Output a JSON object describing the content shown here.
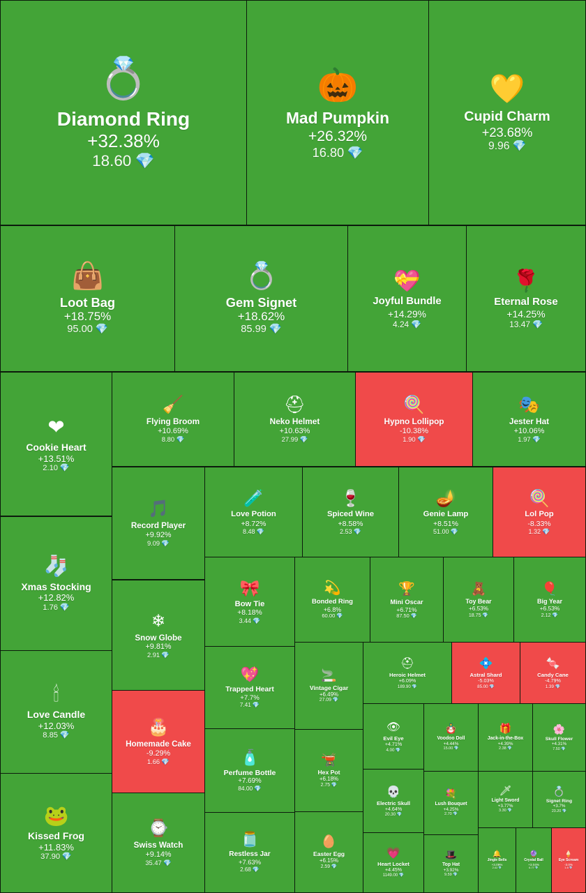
{
  "colors": {
    "gain": "#43a437",
    "loss": "#f04a4a",
    "gem": "#7fe4ff"
  },
  "currency_symbol": "💎",
  "chart_data": {
    "type": "treemap",
    "items": [
      {
        "name": "Diamond Ring",
        "change": "+32.38%",
        "change_value": 32.38,
        "price": "18.60",
        "icon": "ring-box-icon"
      },
      {
        "name": "Mad Pumpkin",
        "change": "+26.32%",
        "change_value": 26.32,
        "price": "16.80",
        "icon": "pumpkin-icon"
      },
      {
        "name": "Cupid Charm",
        "change": "+23.68%",
        "change_value": 23.68,
        "price": "9.96",
        "icon": "heart-lock-icon"
      },
      {
        "name": "Loot Bag",
        "change": "+18.75%",
        "change_value": 18.75,
        "price": "95.00",
        "icon": "handbag-icon"
      },
      {
        "name": "Gem Signet",
        "change": "+18.62%",
        "change_value": 18.62,
        "price": "85.99",
        "icon": "gem-ring-icon"
      },
      {
        "name": "Joyful Bundle",
        "change": "+14.29%",
        "change_value": 14.29,
        "price": "4.24",
        "icon": "gift-bundle-icon"
      },
      {
        "name": "Eternal Rose",
        "change": "+14.25%",
        "change_value": 14.25,
        "price": "13.47",
        "icon": "rose-icon"
      },
      {
        "name": "Cookie Heart",
        "change": "+13.51%",
        "change_value": 13.51,
        "price": "2.10",
        "icon": "cookie-heart-icon"
      },
      {
        "name": "Flying Broom",
        "change": "+10.69%",
        "change_value": 10.69,
        "price": "8.80",
        "icon": "broom-icon"
      },
      {
        "name": "Neko Helmet",
        "change": "+10.63%",
        "change_value": 10.63,
        "price": "27.99",
        "icon": "helmet-icon"
      },
      {
        "name": "Hypno Lollipop",
        "change": "-10.38%",
        "change_value": -10.38,
        "price": "1.90",
        "icon": "lollipop-icon"
      },
      {
        "name": "Jester Hat",
        "change": "+10.06%",
        "change_value": 10.06,
        "price": "1.97",
        "icon": "jester-hat-icon"
      },
      {
        "name": "Record Player",
        "change": "+9.92%",
        "change_value": 9.92,
        "price": "9.09",
        "icon": "record-player-icon"
      },
      {
        "name": "Love Potion",
        "change": "+8.72%",
        "change_value": 8.72,
        "price": "8.48",
        "icon": "potion-icon"
      },
      {
        "name": "Spiced Wine",
        "change": "+8.58%",
        "change_value": 8.58,
        "price": "2.53",
        "icon": "wine-glass-icon"
      },
      {
        "name": "Genie Lamp",
        "change": "+8.51%",
        "change_value": 8.51,
        "price": "51.00",
        "icon": "lamp-icon"
      },
      {
        "name": "Lol Pop",
        "change": "-8.33%",
        "change_value": -8.33,
        "price": "1.32",
        "icon": "swirl-lollipop-icon"
      },
      {
        "name": "Xmas Stocking",
        "change": "+12.82%",
        "change_value": 12.82,
        "price": "1.76",
        "icon": "stocking-icon"
      },
      {
        "name": "Snow Globe",
        "change": "+9.81%",
        "change_value": 9.81,
        "price": "2.91",
        "icon": "snow-globe-icon"
      },
      {
        "name": "Bow Tie",
        "change": "+8.18%",
        "change_value": 8.18,
        "price": "3.44",
        "icon": "bow-tie-icon"
      },
      {
        "name": "Bonded Ring",
        "change": "+6.8%",
        "change_value": 6.8,
        "price": "60.00",
        "icon": "bonded-ring-icon"
      },
      {
        "name": "Mini Oscar",
        "change": "+6.71%",
        "change_value": 6.71,
        "price": "87.50",
        "icon": "trophy-icon"
      },
      {
        "name": "Toy Bear",
        "change": "+6.53%",
        "change_value": 6.53,
        "price": "18.75",
        "icon": "teddy-bear-icon"
      },
      {
        "name": "Big Year",
        "change": "+6.53%",
        "change_value": 6.53,
        "price": "2.12",
        "icon": "balloons-icon"
      },
      {
        "name": "Trapped Heart",
        "change": "+7.7%",
        "change_value": 7.7,
        "price": "7.41",
        "icon": "trapped-heart-icon"
      },
      {
        "name": "Vintage Cigar",
        "change": "+6.49%",
        "change_value": 6.49,
        "price": "27.09",
        "icon": "cigar-icon"
      },
      {
        "name": "Heroic Helmet",
        "change": "+6.09%",
        "change_value": 6.09,
        "price": "189.90",
        "icon": "spartan-helmet-icon"
      },
      {
        "name": "Astral Shard",
        "change": "-5.03%",
        "change_value": -5.03,
        "price": "85.00",
        "icon": "crystal-icon"
      },
      {
        "name": "Candy Cane",
        "change": "-4.79%",
        "change_value": -4.79,
        "price": "1.39",
        "icon": "candy-cane-icon"
      },
      {
        "name": "Love Candle",
        "change": "+12.03%",
        "change_value": 12.03,
        "price": "8.85",
        "icon": "candle-icon"
      },
      {
        "name": "Homemade Cake",
        "change": "-9.29%",
        "change_value": -9.29,
        "price": "1.66",
        "icon": "cake-icon"
      },
      {
        "name": "Perfume Bottle",
        "change": "+7.69%",
        "change_value": 7.69,
        "price": "84.00",
        "icon": "perfume-icon"
      },
      {
        "name": "Hex Pot",
        "change": "+6.18%",
        "change_value": 6.18,
        "price": "2.75",
        "icon": "cauldron-icon"
      },
      {
        "name": "Evil Eye",
        "change": "+4.71%",
        "change_value": 4.71,
        "price": "4.00",
        "icon": "eye-icon"
      },
      {
        "name": "Voodoo Doll",
        "change": "+4.44%",
        "change_value": 4.44,
        "price": "15.00",
        "icon": "voodoo-doll-icon"
      },
      {
        "name": "Jack-in-the-Box",
        "change": "+4.39%",
        "change_value": 4.39,
        "price": "2.38",
        "icon": "jack-in-box-icon"
      },
      {
        "name": "Skull Flower",
        "change": "+4.31%",
        "change_value": 4.31,
        "price": "7.50",
        "icon": "skull-flower-icon"
      },
      {
        "name": "Electric Skull",
        "change": "+4.64%",
        "change_value": 4.64,
        "price": "20.30",
        "icon": "skull-icon"
      },
      {
        "name": "Lush Bouquet",
        "change": "+4.25%",
        "change_value": 4.25,
        "price": "2.70",
        "icon": "bouquet-icon"
      },
      {
        "name": "Light Sword",
        "change": "+3.77%",
        "change_value": 3.77,
        "price": "3.30",
        "icon": "sword-icon"
      },
      {
        "name": "Signet Ring",
        "change": "+3.7%",
        "change_value": 3.7,
        "price": "23.20",
        "icon": "signet-ring-icon"
      },
      {
        "name": "Kissed Frog",
        "change": "+11.83%",
        "change_value": 11.83,
        "price": "37.90",
        "icon": "frog-icon"
      },
      {
        "name": "Swiss Watch",
        "change": "+9.14%",
        "change_value": 9.14,
        "price": "35.47",
        "icon": "watch-icon"
      },
      {
        "name": "Restless Jar",
        "change": "+7.63%",
        "change_value": 7.63,
        "price": "2.68",
        "icon": "jar-icon"
      },
      {
        "name": "Easter Egg",
        "change": "+6.15%",
        "change_value": 6.15,
        "price": "2.59",
        "icon": "egg-icon"
      },
      {
        "name": "Heart Locket",
        "change": "+4.45%",
        "change_value": 4.45,
        "price": "1149.00",
        "icon": "locket-icon"
      },
      {
        "name": "Top Hat",
        "change": "+3.92%",
        "change_value": 3.92,
        "price": "9.59",
        "icon": "top-hat-icon"
      },
      {
        "name": "Jingle Bells",
        "change": "+3.09%",
        "change_value": 3.09,
        "price": "2.02",
        "icon": "bells-icon"
      },
      {
        "name": "Crystal Ball",
        "change": "+3.04%",
        "change_value": 3.04,
        "price": "6.77",
        "icon": "crystal-ball-icon"
      },
      {
        "name": "Eye Scream",
        "change": "-3.0%",
        "change_value": -3.0,
        "price": "1.6",
        "icon": "ice-cream-icon"
      }
    ]
  }
}
